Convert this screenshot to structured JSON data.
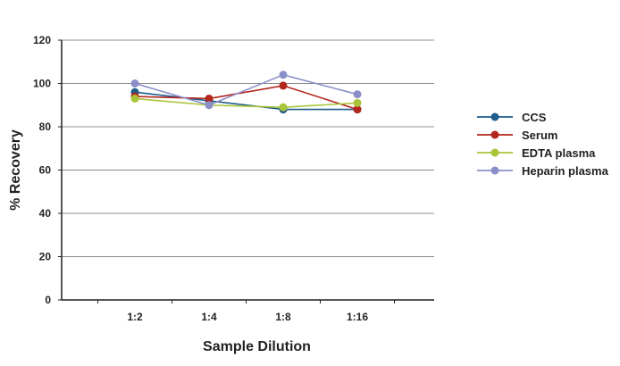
{
  "chart_data": {
    "type": "line",
    "categories": [
      "1:2",
      "1:4",
      "1:8",
      "1:16"
    ],
    "xlabel": "Sample Dilution",
    "ylabel": "% Recovery",
    "ylim": [
      0,
      120
    ],
    "yticks": [
      0,
      20,
      40,
      60,
      80,
      100,
      120
    ],
    "grid": true,
    "legend_position": "right",
    "series": [
      {
        "name": "CCS",
        "values": [
          96,
          92,
          88,
          88
        ],
        "color": "#1f5c8b"
      },
      {
        "name": "Serum",
        "values": [
          94,
          93,
          99,
          88
        ],
        "color": "#b3261e"
      },
      {
        "name": "EDTA plasma",
        "values": [
          93,
          90,
          89,
          91
        ],
        "color": "#a8c43a"
      },
      {
        "name": "Heparin plasma",
        "values": [
          100,
          90,
          104,
          95
        ],
        "color": "#8b8fc9"
      }
    ]
  }
}
